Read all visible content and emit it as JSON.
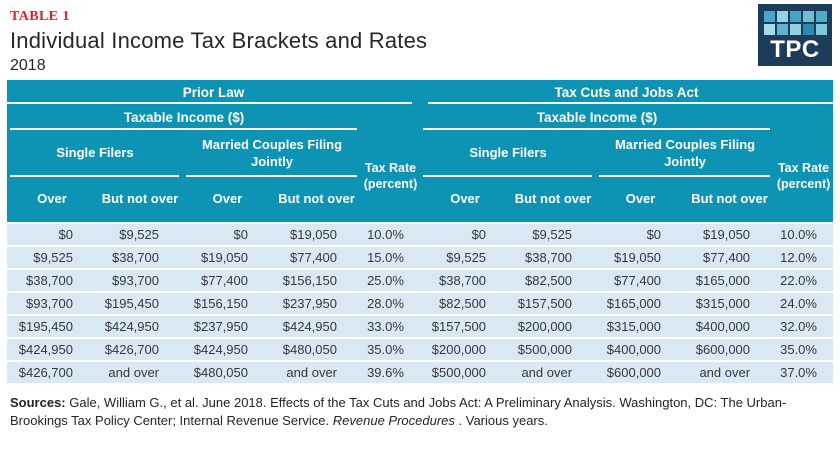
{
  "page": {
    "table_tag": "TABLE 1",
    "title": "Individual Income Tax Brackets and Rates",
    "subtitle": "2018"
  },
  "logo": {
    "text": "TPC",
    "square_colors": [
      "#4ba6c9",
      "#93d4e4",
      "#47a3c6",
      "#6fbdd6",
      "#52abc9",
      "#a5dbe8",
      "#5cb2cf",
      "#90d2e2",
      "#2e89ad",
      "#7fc7da"
    ]
  },
  "colors": {
    "accent_red": "#e41d25",
    "header_teal": "#0d93b4",
    "row_blue": "#d9e9f4",
    "logo_navy": "#1d3c5b"
  },
  "table": {
    "header": {
      "taxable_income": "Taxable Income ($)",
      "single_filers": "Single Filers",
      "married_joint": "Married Couples Filing Jointly",
      "tax_rate": "Tax Rate (percent)",
      "over": "Over",
      "but_not_over": "But not over"
    },
    "halves": [
      {
        "title": "Prior Law",
        "rows": [
          [
            "$0",
            "$9,525",
            "$0",
            "$19,050",
            "10.0%"
          ],
          [
            "$9,525",
            "$38,700",
            "$19,050",
            "$77,400",
            "15.0%"
          ],
          [
            "$38,700",
            "$93,700",
            "$77,400",
            "$156,150",
            "25.0%"
          ],
          [
            "$93,700",
            "$195,450",
            "$156,150",
            "$237,950",
            "28.0%"
          ],
          [
            "$195,450",
            "$424,950",
            "$237,950",
            "$424,950",
            "33.0%"
          ],
          [
            "$424,950",
            "$426,700",
            "$424,950",
            "$480,050",
            "35.0%"
          ],
          [
            "$426,700",
            "and over",
            "$480,050",
            "and over",
            "39.6%"
          ]
        ]
      },
      {
        "title": "Tax Cuts and Jobs Act",
        "rows": [
          [
            "$0",
            "$9,525",
            "$0",
            "$19,050",
            "10.0%"
          ],
          [
            "$9,525",
            "$38,700",
            "$19,050",
            "$77,400",
            "12.0%"
          ],
          [
            "$38,700",
            "$82,500",
            "$77,400",
            "$165,000",
            "22.0%"
          ],
          [
            "$82,500",
            "$157,500",
            "$165,000",
            "$315,000",
            "24.0%"
          ],
          [
            "$157,500",
            "$200,000",
            "$315,000",
            "$400,000",
            "32.0%"
          ],
          [
            "$200,000",
            "$500,000",
            "$400,000",
            "$600,000",
            "35.0%"
          ],
          [
            "$500,000",
            "and over",
            "$600,000",
            "and over",
            "37.0%"
          ]
        ]
      }
    ]
  },
  "footer": {
    "sources_label": "Sources:",
    "text_before_italic": " Gale, William G., et al. June 2018. Effects of the Tax Cuts and Jobs Act: A Preliminary Analysis. Washington, DC: The Urban-Brookings Tax Policy Center; Internal Revenue Service. ",
    "italic_text": "Revenue Procedures",
    "text_after_italic": " . Various years."
  }
}
